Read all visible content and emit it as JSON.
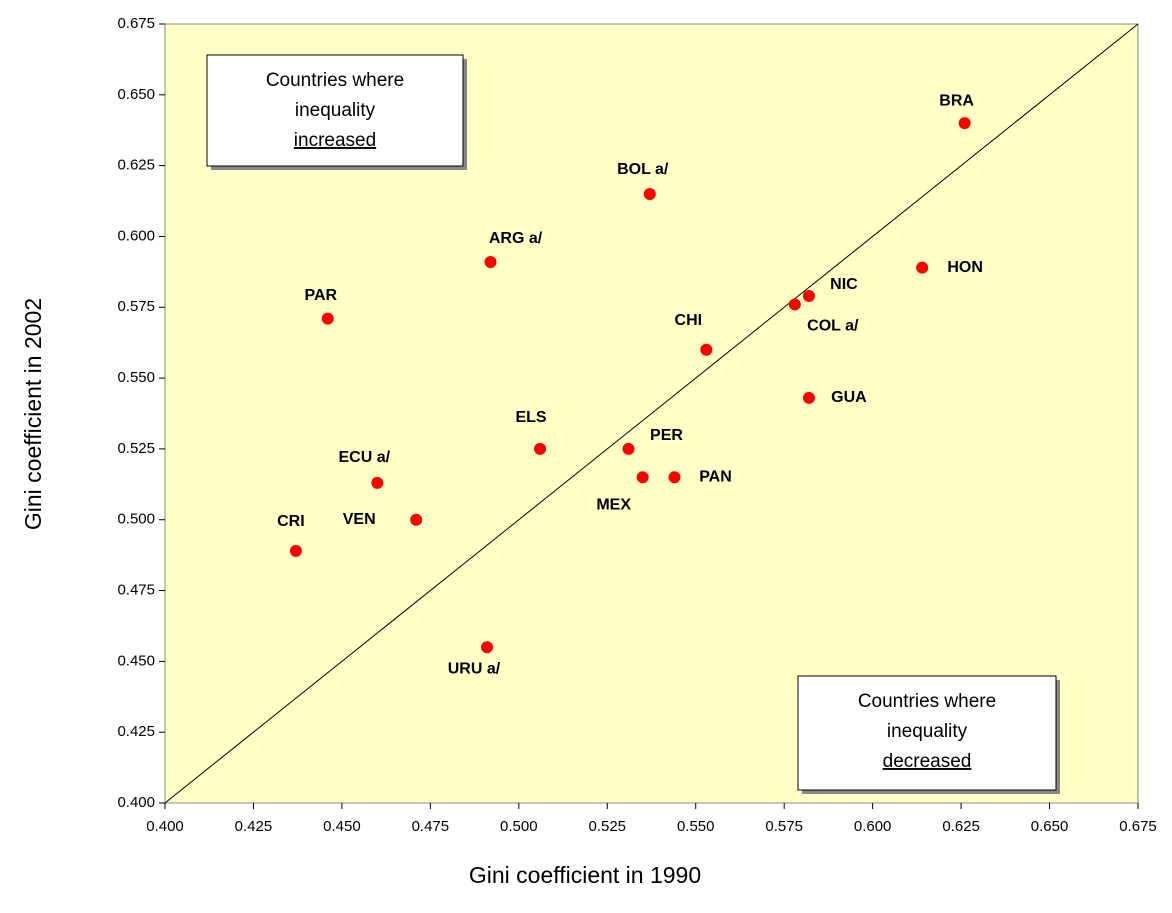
{
  "chart_data": {
    "type": "scatter",
    "x_label": "Gini coefficient in 1990",
    "y_label": "Gini coefficient in 2002",
    "xlim": [
      0.4,
      0.675
    ],
    "ylim": [
      0.4,
      0.675
    ],
    "xticks": [
      {
        "value": 0.4,
        "label": "0.400"
      },
      0.425,
      {
        "value": 0.45,
        "label": "0.450"
      },
      0.475,
      {
        "value": 0.5,
        "label": "0.500"
      },
      0.525,
      {
        "value": 0.55,
        "label": "0.550"
      },
      0.575,
      {
        "value": 0.6,
        "label": "0.600"
      },
      0.625,
      {
        "value": 0.65,
        "label": "0.650"
      },
      0.675
    ],
    "yticks": [
      {
        "value": 0.4,
        "label": "0.400"
      },
      0.425,
      {
        "value": 0.45,
        "label": "0.450"
      },
      0.475,
      {
        "value": 0.5,
        "label": "0.500"
      },
      0.525,
      {
        "value": 0.55,
        "label": "0.550"
      },
      0.575,
      {
        "value": 0.6,
        "label": "0.600"
      },
      0.625,
      {
        "value": 0.65,
        "label": "0.650"
      },
      0.675
    ],
    "background": "#ffffc6",
    "series": [
      {
        "color": "#ff0000",
        "point_labels": [
          "BRA",
          "BOL a/",
          "ARG a/",
          "PAR",
          "CHI",
          "COL a/",
          "NIC",
          "HON",
          "GUA",
          "ELS",
          "PER",
          "PAN",
          "MEX",
          "ECU a/",
          "VEN",
          "CRI",
          "URU a/"
        ],
        "x": [
          0.626,
          0.537,
          0.492,
          0.446,
          0.553,
          0.578,
          0.582,
          0.614,
          0.582,
          0.506,
          0.531,
          0.544,
          0.535,
          0.46,
          0.471,
          0.437,
          0.491
        ],
        "values": [
          0.64,
          0.615,
          0.591,
          0.571,
          0.56,
          0.576,
          0.579,
          0.589,
          0.543,
          0.525,
          0.525,
          0.515,
          0.515,
          0.513,
          0.5,
          0.489,
          0.455
        ]
      }
    ],
    "annotations": [
      {
        "lines": [
          "Countries where",
          "inequality",
          "increased"
        ]
      },
      {
        "lines": [
          "Countries where",
          "inequality",
          "decreased"
        ]
      }
    ]
  }
}
